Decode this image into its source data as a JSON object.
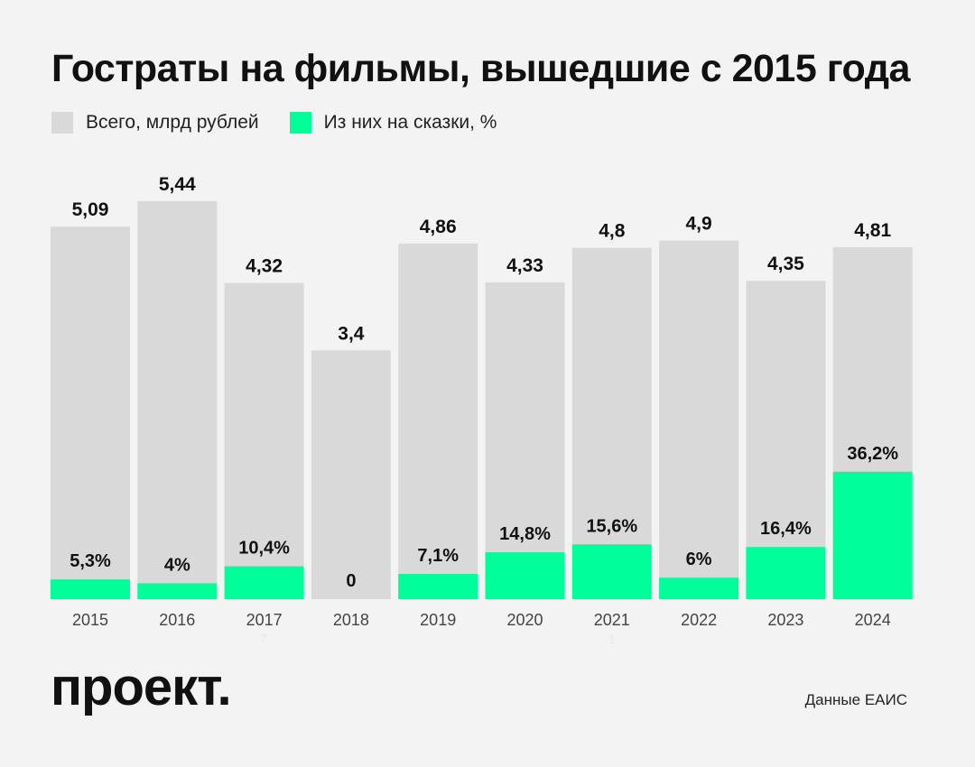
{
  "title": "Гострaты на фильмы, вышедшие с 2015 года",
  "legend": {
    "total_label": "Всего, млрд рублей",
    "fairy_label": "Из них на сказки, %"
  },
  "colors": {
    "total": "#d9d9d9",
    "fairy": "#00ff99",
    "background": "#f3f3f3"
  },
  "chart_data": {
    "type": "bar",
    "categories": [
      "2015",
      "2016",
      "2017",
      "2018",
      "2019",
      "2020",
      "2021",
      "2022",
      "2023",
      "2024"
    ],
    "series": [
      {
        "name": "Всего, млрд рублей",
        "values": [
          5.09,
          5.44,
          4.32,
          3.4,
          4.86,
          4.33,
          4.8,
          4.9,
          4.35,
          4.81
        ],
        "labels": [
          "5,09",
          "5,44",
          "4,32",
          "3,4",
          "4,86",
          "4,33",
          "4,8",
          "4,9",
          "4,35",
          "4,81"
        ]
      },
      {
        "name": "Из них на сказки, %",
        "values": [
          5.3,
          4,
          10.4,
          0,
          7.1,
          14.8,
          15.6,
          6,
          16.4,
          36.2
        ],
        "labels": [
          "5,3%",
          "4%",
          "10,4%",
          "0",
          "7,1%",
          "14,8%",
          "15,6%",
          "6%",
          "16,4%",
          "36,2%"
        ]
      }
    ],
    "grid": false,
    "legend_position": "top-left"
  },
  "footer": {
    "logo": "проект.",
    "source": "Данные ЕАИС"
  },
  "faint_notes": {
    "note_2017": "7",
    "note_2021": "1"
  }
}
